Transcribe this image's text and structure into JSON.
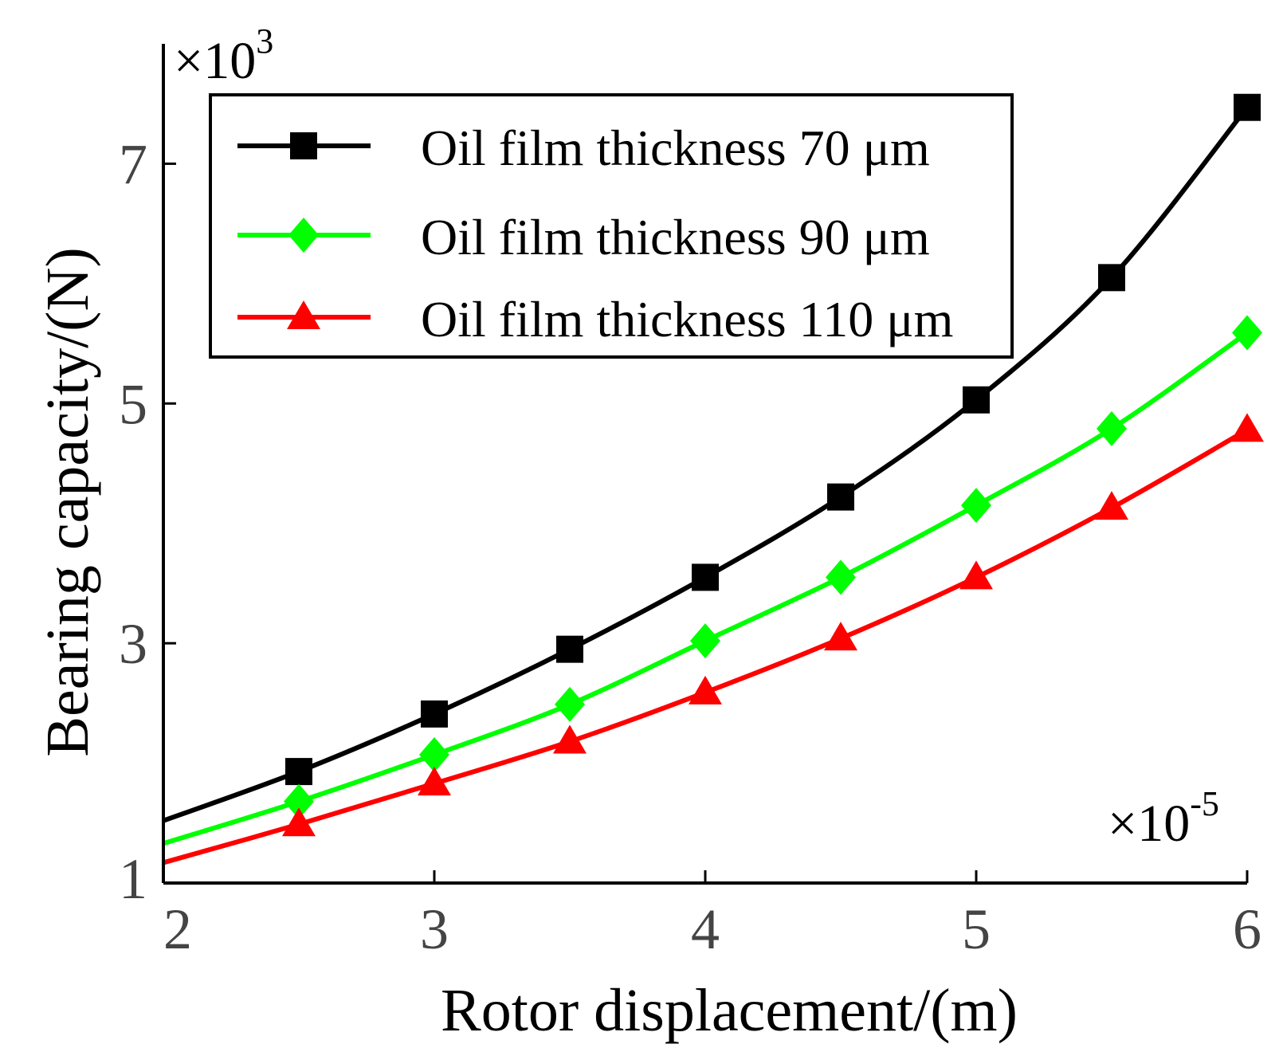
{
  "chart_data": {
    "type": "line",
    "title": "",
    "xlabel": "Rotor displacement/(m)",
    "ylabel": "Bearing capacity/(N)",
    "x_multiplier": {
      "base": "×10",
      "exponent": "-5"
    },
    "y_multiplier": {
      "base": "×10",
      "exponent": "3"
    },
    "xlim": [
      2,
      6
    ],
    "ylim": [
      1,
      8
    ],
    "xticks": [
      2,
      3,
      4,
      5,
      6
    ],
    "yticks": [
      1,
      3,
      5,
      7
    ],
    "x": [
      2.0,
      2.5,
      3.0,
      3.5,
      4.0,
      4.5,
      5.0,
      5.5,
      6.0
    ],
    "grid": false,
    "legend_position": "top-left",
    "series": [
      {
        "name": "Oil film thickness 70 μm",
        "color": "#000000",
        "marker": "square",
        "marker_x": [
          2.5,
          3.0,
          3.5,
          4.0,
          4.5,
          5.0,
          5.5,
          6.0
        ],
        "values": [
          1.52,
          1.93,
          2.41,
          2.95,
          3.55,
          4.22,
          5.03,
          6.05,
          7.47
        ]
      },
      {
        "name": "Oil film thickness 90 μm",
        "color": "#00ff00",
        "marker": "diamond",
        "marker_x": [
          2.5,
          3.0,
          3.5,
          4.0,
          4.5,
          5.0,
          5.5,
          6.0
        ],
        "values": [
          1.33,
          1.68,
          2.07,
          2.49,
          3.02,
          3.55,
          4.15,
          4.79,
          5.59
        ]
      },
      {
        "name": "Oil film thickness 110 μm",
        "color": "#ff0000",
        "marker": "triangle",
        "marker_x": [
          2.5,
          3.0,
          3.5,
          4.0,
          4.5,
          5.0,
          5.5,
          6.0
        ],
        "values": [
          1.17,
          1.49,
          1.83,
          2.18,
          2.59,
          3.04,
          3.55,
          4.13,
          4.78
        ]
      }
    ]
  }
}
